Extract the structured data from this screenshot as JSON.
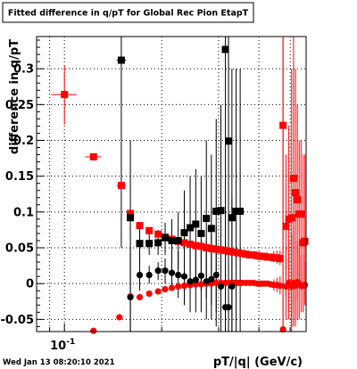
{
  "chart_data": {
    "type": "scatter",
    "title": "Fitted difference in q/pT for Global Rec Pion EtapT",
    "xlabel": "pT/|q| (GeV/c)",
    "ylabel": "difference in q/pT",
    "x_scale": "log",
    "xlim": [
      0.082,
      0.56
    ],
    "ylim": [
      -0.067,
      0.345
    ],
    "x_ticks": [
      {
        "value": 0.1,
        "label": "10",
        "exponent": "-1"
      }
    ],
    "y_ticks": [
      {
        "value": -0.05,
        "label": "-0.05"
      },
      {
        "value": 0,
        "label": "0"
      },
      {
        "value": 0.05,
        "label": "0.05"
      },
      {
        "value": 0.1,
        "label": "0.1"
      },
      {
        "value": 0.15,
        "label": "0.15"
      },
      {
        "value": 0.2,
        "label": "0.2"
      },
      {
        "value": 0.25,
        "label": "0.25"
      },
      {
        "value": 0.3,
        "label": "0.3"
      }
    ],
    "grid": true,
    "series": [
      {
        "color": "#ff0000",
        "marker": "square",
        "points": [
          {
            "x": 0.1,
            "xl": 0.091,
            "xh": 0.109,
            "y": 0.264,
            "yl": 0.222,
            "yh": 0.305
          },
          {
            "x": 0.123,
            "xl": 0.116,
            "xh": 0.13,
            "y": 0.177,
            "yl": 0.174,
            "yh": 0.18
          },
          {
            "x": 0.15,
            "xl": 0.145,
            "xh": 0.155,
            "y": 0.137,
            "yl": 0.134,
            "yh": 0.14
          },
          {
            "x": 0.16,
            "y": 0.098,
            "yl": 0.095,
            "yh": 0.101
          },
          {
            "x": 0.171,
            "y": 0.081
          },
          {
            "x": 0.183,
            "y": 0.074
          },
          {
            "x": 0.195,
            "y": 0.069
          },
          {
            "x": 0.205,
            "y": 0.065
          },
          {
            "x": 0.215,
            "y": 0.062
          },
          {
            "x": 0.225,
            "y": 0.059
          },
          {
            "x": 0.235,
            "y": 0.057
          },
          {
            "x": 0.245,
            "y": 0.055
          },
          {
            "x": 0.255,
            "y": 0.053
          },
          {
            "x": 0.265,
            "y": 0.052
          },
          {
            "x": 0.275,
            "y": 0.05
          },
          {
            "x": 0.285,
            "y": 0.049
          },
          {
            "x": 0.295,
            "y": 0.048
          },
          {
            "x": 0.305,
            "y": 0.047
          },
          {
            "x": 0.315,
            "y": 0.046
          },
          {
            "x": 0.325,
            "y": 0.045
          },
          {
            "x": 0.335,
            "y": 0.044
          },
          {
            "x": 0.345,
            "y": 0.043
          },
          {
            "x": 0.355,
            "y": 0.042
          },
          {
            "x": 0.365,
            "y": 0.041
          },
          {
            "x": 0.375,
            "y": 0.04
          },
          {
            "x": 0.385,
            "y": 0.04
          },
          {
            "x": 0.395,
            "y": 0.039
          },
          {
            "x": 0.405,
            "y": 0.038
          },
          {
            "x": 0.415,
            "y": 0.038
          },
          {
            "x": 0.425,
            "y": 0.037
          },
          {
            "x": 0.435,
            "y": 0.037
          },
          {
            "x": 0.445,
            "y": 0.036,
            "yl": 0.03,
            "yh": 0.045
          },
          {
            "x": 0.455,
            "y": 0.036,
            "yl": 0.028,
            "yh": 0.046
          },
          {
            "x": 0.465,
            "y": 0.035,
            "yl": 0.026,
            "yh": 0.046
          },
          {
            "x": 0.475,
            "y": 0.221,
            "yl": -0.067,
            "yh": 0.345
          },
          {
            "x": 0.485,
            "y": 0.08,
            "yl": -0.02,
            "yh": 0.18
          },
          {
            "x": 0.495,
            "y": 0.09,
            "yl": -0.04,
            "yh": 0.22
          },
          {
            "x": 0.505,
            "y": 0.092,
            "yl": -0.067,
            "yh": 0.3
          },
          {
            "x": 0.512,
            "y": 0.147,
            "yl": -0.03,
            "yh": 0.345
          },
          {
            "x": 0.519,
            "y": 0.127,
            "yl": -0.05,
            "yh": 0.3
          },
          {
            "x": 0.526,
            "y": 0.117,
            "yl": -0.02,
            "yh": 0.25
          },
          {
            "x": 0.533,
            "y": 0.097,
            "yl": 0.0,
            "yh": 0.2
          },
          {
            "x": 0.54,
            "y": 0.097,
            "yl": -0.01,
            "yh": 0.2
          },
          {
            "x": 0.548,
            "y": 0.057,
            "yl": -0.03,
            "yh": 0.18
          },
          {
            "x": 0.555,
            "y": 0.059,
            "yl": -0.03,
            "yh": 0.18
          }
        ]
      },
      {
        "color": "#ff0000",
        "marker": "circle",
        "points": [
          {
            "x": 0.123,
            "y": -0.066
          },
          {
            "x": 0.148,
            "y": -0.047
          },
          {
            "x": 0.16,
            "y": -0.018
          },
          {
            "x": 0.171,
            "y": -0.019
          },
          {
            "x": 0.183,
            "y": -0.014
          },
          {
            "x": 0.195,
            "y": -0.011
          },
          {
            "x": 0.205,
            "y": -0.008
          },
          {
            "x": 0.215,
            "y": -0.006
          },
          {
            "x": 0.225,
            "y": -0.004
          },
          {
            "x": 0.235,
            "y": -0.003
          },
          {
            "x": 0.245,
            "y": -0.002
          },
          {
            "x": 0.255,
            "y": -0.001
          },
          {
            "x": 0.265,
            "y": -0.001
          },
          {
            "x": 0.275,
            "y": 0.0
          },
          {
            "x": 0.285,
            "y": 0.0
          },
          {
            "x": 0.295,
            "y": 0.001
          },
          {
            "x": 0.305,
            "y": 0.001
          },
          {
            "x": 0.315,
            "y": 0.001
          },
          {
            "x": 0.325,
            "y": 0.001
          },
          {
            "x": 0.335,
            "y": 0.001
          },
          {
            "x": 0.345,
            "y": 0.001
          },
          {
            "x": 0.355,
            "y": 0.001
          },
          {
            "x": 0.365,
            "y": 0.001
          },
          {
            "x": 0.375,
            "y": 0.001
          },
          {
            "x": 0.385,
            "y": 0.001
          },
          {
            "x": 0.395,
            "y": 0.0
          },
          {
            "x": 0.405,
            "y": 0.0
          },
          {
            "x": 0.415,
            "y": 0.0
          },
          {
            "x": 0.425,
            "y": 0.0
          },
          {
            "x": 0.435,
            "y": -0.001
          },
          {
            "x": 0.445,
            "y": -0.002,
            "yl": -0.01,
            "yh": 0.006
          },
          {
            "x": 0.455,
            "y": -0.002,
            "yl": -0.012,
            "yh": 0.008
          },
          {
            "x": 0.465,
            "y": -0.003,
            "yl": -0.015,
            "yh": 0.01
          },
          {
            "x": 0.475,
            "y": -0.064,
            "yl": -0.067,
            "yh": 0.345
          },
          {
            "x": 0.485,
            "y": -0.004,
            "yl": -0.05,
            "yh": 0.05
          },
          {
            "x": 0.495,
            "y": 0.001,
            "yl": -0.05,
            "yh": 0.06
          },
          {
            "x": 0.505,
            "y": -0.004,
            "yl": -0.06,
            "yh": 0.07
          },
          {
            "x": 0.512,
            "y": 0.001,
            "yl": -0.06,
            "yh": 0.08
          },
          {
            "x": 0.519,
            "y": -0.003,
            "yl": -0.06,
            "yh": 0.06
          },
          {
            "x": 0.526,
            "y": 0.002,
            "yl": -0.05,
            "yh": 0.06
          },
          {
            "x": 0.533,
            "y": 0.0,
            "yl": -0.05,
            "yh": 0.05
          },
          {
            "x": 0.54,
            "y": -0.003,
            "yl": -0.04,
            "yh": 0.04
          },
          {
            "x": 0.548,
            "y": -0.003,
            "yl": -0.04,
            "yh": 0.04
          },
          {
            "x": 0.555,
            "y": -0.002,
            "yl": -0.03,
            "yh": 0.03
          }
        ]
      },
      {
        "color": "#000000",
        "marker": "square",
        "points": [
          {
            "x": 0.15,
            "xl": 0.145,
            "xh": 0.155,
            "y": 0.312,
            "yl": 0.05,
            "yh": 0.345
          },
          {
            "x": 0.16,
            "y": 0.092,
            "yl": -0.067,
            "yh": 0.2
          },
          {
            "x": 0.171,
            "y": 0.056,
            "yl": 0.03,
            "yh": 0.08
          },
          {
            "x": 0.183,
            "y": 0.056,
            "yl": 0.04,
            "yh": 0.07
          },
          {
            "x": 0.195,
            "y": 0.057,
            "yl": 0.04,
            "yh": 0.075
          },
          {
            "x": 0.205,
            "y": 0.064,
            "yl": 0.04,
            "yh": 0.085
          },
          {
            "x": 0.215,
            "y": 0.06,
            "yl": 0.03,
            "yh": 0.09
          },
          {
            "x": 0.225,
            "y": 0.06,
            "yl": 0.02,
            "yh": 0.1
          },
          {
            "x": 0.235,
            "y": 0.071,
            "yl": 0.01,
            "yh": 0.13
          },
          {
            "x": 0.245,
            "y": 0.078,
            "yl": 0.01,
            "yh": 0.15
          },
          {
            "x": 0.255,
            "y": 0.083,
            "yl": 0.0,
            "yh": 0.16
          },
          {
            "x": 0.265,
            "y": 0.07,
            "yl": -0.01,
            "yh": 0.15
          },
          {
            "x": 0.275,
            "y": 0.091,
            "yl": -0.02,
            "yh": 0.2
          },
          {
            "x": 0.285,
            "y": 0.077,
            "yl": -0.03,
            "yh": 0.18
          },
          {
            "x": 0.295,
            "y": 0.101,
            "yl": -0.04,
            "yh": 0.23
          },
          {
            "x": 0.305,
            "y": 0.102,
            "yl": -0.05,
            "yh": 0.25
          },
          {
            "x": 0.315,
            "y": 0.327,
            "yl": -0.067,
            "yh": 0.345
          },
          {
            "x": 0.322,
            "y": 0.199,
            "yl": -0.067,
            "yh": 0.345
          },
          {
            "x": 0.33,
            "y": 0.092,
            "yl": -0.067,
            "yh": 0.3
          },
          {
            "x": 0.34,
            "y": 0.101,
            "yl": -0.067,
            "yh": 0.3
          },
          {
            "x": 0.35,
            "y": 0.101,
            "yl": -0.067,
            "yh": 0.3
          }
        ]
      },
      {
        "color": "#000000",
        "marker": "circle",
        "points": [
          {
            "x": 0.16,
            "y": -0.019,
            "yl": -0.067,
            "yh": 0.05
          },
          {
            "x": 0.171,
            "y": 0.012,
            "yl": -0.01,
            "yh": 0.04
          },
          {
            "x": 0.183,
            "y": 0.012,
            "yl": 0.0,
            "yh": 0.025
          },
          {
            "x": 0.195,
            "y": 0.018,
            "yl": 0.005,
            "yh": 0.03
          },
          {
            "x": 0.205,
            "y": 0.018,
            "yl": 0.0,
            "yh": 0.035
          },
          {
            "x": 0.215,
            "y": 0.015,
            "yl": -0.01,
            "yh": 0.04
          },
          {
            "x": 0.225,
            "y": 0.012,
            "yl": -0.02,
            "yh": 0.045
          },
          {
            "x": 0.235,
            "y": 0.01,
            "yl": -0.03,
            "yh": 0.05
          },
          {
            "x": 0.245,
            "y": 0.003,
            "yl": -0.04,
            "yh": 0.05
          },
          {
            "x": 0.255,
            "y": 0.005,
            "yl": -0.04,
            "yh": 0.05
          },
          {
            "x": 0.265,
            "y": 0.011,
            "yl": -0.04,
            "yh": 0.06
          },
          {
            "x": 0.275,
            "y": 0.003,
            "yl": -0.05,
            "yh": 0.06
          },
          {
            "x": 0.285,
            "y": 0.006,
            "yl": -0.05,
            "yh": 0.07
          },
          {
            "x": 0.295,
            "y": 0.012,
            "yl": -0.06,
            "yh": 0.08
          },
          {
            "x": 0.305,
            "y": -0.004,
            "yl": -0.067,
            "yh": 0.09
          },
          {
            "x": 0.315,
            "y": -0.033,
            "yl": -0.067,
            "yh": 0.1
          },
          {
            "x": 0.322,
            "y": -0.033,
            "yl": -0.067,
            "yh": 0.1
          },
          {
            "x": 0.33,
            "y": -0.004,
            "yl": -0.067,
            "yh": 0.12
          }
        ]
      }
    ]
  },
  "footer": {
    "timestamp": "Wed Jan 13 08:20:10 2021"
  }
}
